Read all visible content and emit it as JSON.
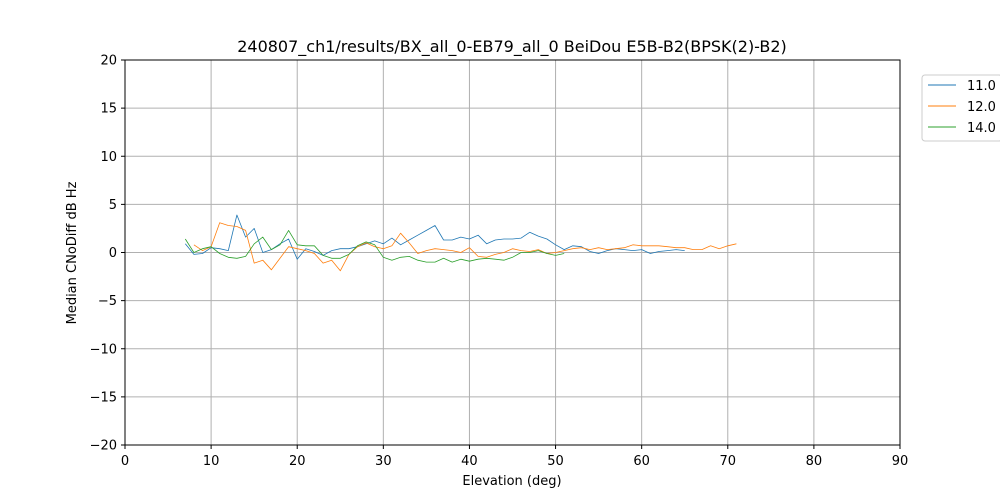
{
  "chart_data": {
    "type": "line",
    "title": "240807_ch1/results/BX_all_0-EB79_all_0 BeiDou E5B-B2(BPSK(2)-B2)",
    "xlabel": "Elevation (deg)",
    "ylabel": "Median CNoDiff dB Hz",
    "xlim": [
      0,
      90
    ],
    "ylim": [
      -20,
      20
    ],
    "xticks": [
      "0",
      "10",
      "20",
      "30",
      "40",
      "50",
      "60",
      "70",
      "80",
      "90"
    ],
    "yticks": [
      "20",
      "15",
      "10",
      "5",
      "0",
      "−5",
      "−10",
      "−15",
      "−20"
    ],
    "grid": true,
    "legend_position": "outside-top-right",
    "series": [
      {
        "name": "11.0",
        "color": "#1f77b4",
        "x": [
          7,
          8,
          9,
          10,
          11,
          12,
          13,
          14,
          15,
          16,
          17,
          18,
          19,
          20,
          21,
          22,
          23,
          24,
          25,
          26,
          27,
          28,
          29,
          30,
          31,
          32,
          33,
          34,
          35,
          36,
          37,
          38,
          39,
          40,
          41,
          42,
          43,
          44,
          45,
          46,
          47,
          48,
          49,
          50,
          51,
          52,
          53,
          54,
          55,
          56,
          57,
          58,
          59,
          60,
          61,
          62,
          63,
          64,
          65
        ],
        "y": [
          0.9,
          -0.2,
          -0.1,
          0.5,
          0.4,
          0.2,
          3.9,
          1.6,
          2.5,
          0.0,
          0.3,
          0.9,
          1.4,
          -0.7,
          0.4,
          0.1,
          -0.3,
          0.2,
          0.4,
          0.4,
          0.6,
          0.9,
          1.2,
          0.9,
          1.5,
          0.8,
          1.3,
          1.8,
          2.3,
          2.8,
          1.3,
          1.3,
          1.6,
          1.4,
          1.8,
          0.9,
          1.3,
          1.4,
          1.4,
          1.5,
          2.1,
          1.7,
          1.4,
          0.8,
          0.3,
          0.7,
          0.6,
          0.1,
          -0.1,
          0.2,
          0.4,
          0.3,
          0.2,
          0.3,
          -0.1,
          0.1,
          0.2,
          0.3,
          0.2
        ]
      },
      {
        "name": "12.0",
        "color": "#ff7f0e",
        "x": [
          8,
          9,
          10,
          11,
          12,
          13,
          14,
          15,
          16,
          17,
          18,
          19,
          20,
          21,
          22,
          23,
          24,
          25,
          26,
          27,
          28,
          29,
          30,
          31,
          32,
          33,
          34,
          35,
          36,
          37,
          38,
          39,
          40,
          41,
          42,
          43,
          44,
          45,
          46,
          47,
          48,
          49,
          50,
          51,
          52,
          53,
          54,
          55,
          56,
          57,
          58,
          59,
          60,
          61,
          62,
          63,
          64,
          65,
          66,
          67,
          68,
          69,
          70,
          71
        ],
        "y": [
          0.8,
          0.2,
          0.6,
          3.1,
          2.8,
          2.7,
          2.3,
          -1.1,
          -0.8,
          -1.8,
          -0.6,
          0.6,
          0.4,
          0.2,
          -0.1,
          -1.1,
          -0.8,
          -1.9,
          -0.2,
          0.6,
          1.0,
          0.6,
          0.4,
          0.7,
          2.0,
          1.0,
          -0.1,
          0.2,
          0.4,
          0.3,
          0.2,
          0.0,
          0.5,
          -0.4,
          -0.5,
          -0.2,
          0.0,
          0.4,
          0.2,
          0.1,
          0.3,
          -0.1,
          0.0,
          0.2,
          0.4,
          0.5,
          0.3,
          0.5,
          0.3,
          0.4,
          0.5,
          0.8,
          0.7,
          0.7,
          0.7,
          0.6,
          0.5,
          0.5,
          0.3,
          0.3,
          0.7,
          0.4,
          0.7,
          0.9
        ]
      },
      {
        "name": "14.0",
        "color": "#2ca02c",
        "x": [
          7,
          8,
          9,
          10,
          11,
          12,
          13,
          14,
          15,
          16,
          17,
          18,
          19,
          20,
          21,
          22,
          23,
          24,
          25,
          26,
          27,
          28,
          29,
          30,
          31,
          32,
          33,
          34,
          35,
          36,
          37,
          38,
          39,
          40,
          41,
          42,
          43,
          44,
          45,
          46,
          47,
          48,
          49,
          50,
          51
        ],
        "y": [
          1.4,
          0.0,
          0.4,
          0.6,
          -0.1,
          -0.5,
          -0.6,
          -0.4,
          0.9,
          1.6,
          0.3,
          0.8,
          2.3,
          0.8,
          0.7,
          0.7,
          -0.3,
          -0.6,
          -0.6,
          -0.2,
          0.7,
          1.1,
          0.8,
          -0.5,
          -0.8,
          -0.5,
          -0.4,
          -0.8,
          -1.0,
          -1.0,
          -0.6,
          -1.0,
          -0.7,
          -0.9,
          -0.7,
          -0.6,
          -0.7,
          -0.8,
          -0.5,
          0.0,
          0.0,
          0.2,
          -0.1,
          -0.3,
          -0.1
        ]
      }
    ]
  }
}
